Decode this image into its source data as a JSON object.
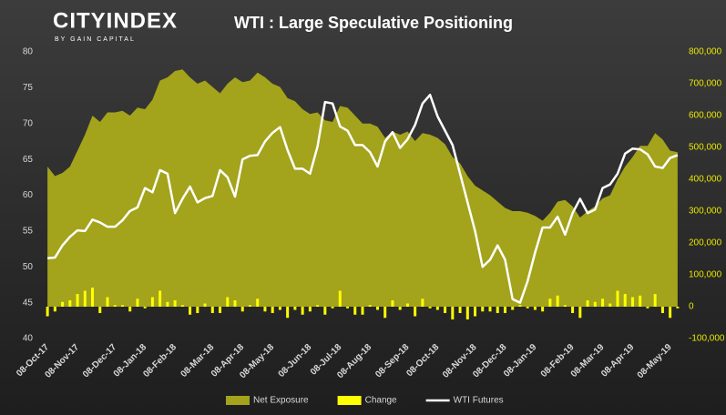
{
  "logo": {
    "brand": "CITYINDEX",
    "tagline": "BY GAIN CAPITAL"
  },
  "chart_data": {
    "type": "combo",
    "title": "WTI : Large Speculative Positioning",
    "categories": [
      "08-Oct-17",
      null,
      null,
      null,
      "08-Nov-17",
      null,
      null,
      null,
      null,
      "08-Dec-17",
      null,
      null,
      null,
      "08-Jan-18",
      null,
      null,
      null,
      "08-Feb-18",
      null,
      null,
      null,
      null,
      "08-Mar-18",
      null,
      null,
      null,
      "08-Apr-18",
      null,
      null,
      null,
      "08-May-18",
      null,
      null,
      null,
      null,
      "08-Jun-18",
      null,
      null,
      null,
      "08-Jul-18",
      null,
      null,
      null,
      "08-Aug-18",
      null,
      null,
      null,
      null,
      "08-Sep-18",
      null,
      null,
      null,
      "08-Oct-18",
      null,
      null,
      null,
      null,
      "08-Nov-18",
      null,
      null,
      null,
      "08-Dec-18",
      null,
      null,
      null,
      "08-Jan-19",
      null,
      null,
      null,
      null,
      "08-Feb-19",
      null,
      null,
      null,
      "08-Mar-19",
      null,
      null,
      null,
      "08-Apr-19",
      null,
      null,
      null,
      null,
      "08-May-19",
      null
    ],
    "series": [
      {
        "name": "Net Exposure",
        "kind": "area",
        "axis": "y2",
        "color": "#a3a31c",
        "values": [
          440000,
          410000,
          420000,
          440000,
          490000,
          540000,
          600000,
          580000,
          610000,
          610000,
          615000,
          600000,
          625000,
          620000,
          650000,
          710000,
          720000,
          740000,
          745000,
          720000,
          700000,
          710000,
          690000,
          670000,
          700000,
          720000,
          705000,
          710000,
          735000,
          720000,
          700000,
          690000,
          655000,
          645000,
          620000,
          605000,
          610000,
          585000,
          580000,
          630000,
          625000,
          600000,
          575000,
          575000,
          565000,
          530000,
          550000,
          540000,
          550000,
          520000,
          545000,
          540000,
          530000,
          510000,
          470000,
          450000,
          410000,
          380000,
          365000,
          350000,
          330000,
          310000,
          300000,
          300000,
          295000,
          285000,
          270000,
          295000,
          330000,
          335000,
          315000,
          280000,
          300000,
          315000,
          340000,
          350000,
          400000,
          440000,
          470000,
          505000,
          505000,
          545000,
          525000,
          490000,
          485000
        ]
      },
      {
        "name": "Change",
        "kind": "bar",
        "axis": "y2",
        "color": "#ffff00",
        "values": [
          -30000,
          -15000,
          15000,
          20000,
          40000,
          50000,
          60000,
          -20000,
          30000,
          5000,
          5000,
          -15000,
          25000,
          -5000,
          30000,
          50000,
          15000,
          20000,
          5000,
          -25000,
          -20000,
          10000,
          -20000,
          -20000,
          30000,
          20000,
          -15000,
          5000,
          25000,
          -15000,
          -20000,
          -10000,
          -35000,
          -10000,
          -25000,
          -15000,
          5000,
          -25000,
          -5000,
          50000,
          -5000,
          -25000,
          -25000,
          5000,
          -10000,
          -35000,
          20000,
          -10000,
          10000,
          -30000,
          25000,
          -5000,
          -10000,
          -20000,
          -40000,
          -20000,
          -40000,
          -30000,
          -15000,
          -15000,
          -20000,
          -20000,
          -10000,
          5000,
          -5000,
          -10000,
          -15000,
          25000,
          35000,
          5000,
          -20000,
          -35000,
          20000,
          15000,
          25000,
          10000,
          50000,
          40000,
          30000,
          35000,
          -5000,
          40000,
          -20000,
          -35000,
          -5000
        ]
      },
      {
        "name": "WTI Futures",
        "kind": "line",
        "axis": "y",
        "color": "#ffffff",
        "values": [
          51.2,
          51.3,
          53,
          54.2,
          55.1,
          55,
          56.6,
          56.2,
          55.6,
          55.6,
          56.5,
          57.8,
          58.3,
          61,
          60.4,
          63.5,
          63,
          57.5,
          59.5,
          61.2,
          59,
          59.6,
          59.9,
          63.5,
          62.5,
          59.8,
          65,
          65.5,
          65.6,
          67.5,
          68.7,
          69.5,
          66.3,
          63.7,
          63.7,
          63,
          66.8,
          73,
          72.8,
          69.6,
          69,
          67,
          67,
          66,
          64,
          67.5,
          68.8,
          66.6,
          67.8,
          69.8,
          72.8,
          74,
          71,
          69,
          67,
          63,
          59,
          55,
          50,
          51,
          53,
          51,
          45.5,
          45,
          48,
          52,
          55.5,
          55.5,
          57,
          54.5,
          57.5,
          59.5,
          57.5,
          58,
          61,
          61.5,
          63,
          65.8,
          66.5,
          66.4,
          65.7,
          64,
          63.8,
          65.2,
          65.6
        ]
      }
    ],
    "ylim": [
      40,
      80
    ],
    "yticks": [
      40,
      45,
      50,
      55,
      60,
      65,
      70,
      75,
      80
    ],
    "y2lim": [
      -100000,
      800000
    ],
    "y2ticks": [
      {
        "value": -100000,
        "label": "-100,000"
      },
      0,
      {
        "value": 100000,
        "label": "100,000"
      },
      {
        "value": 200000,
        "label": "200,000"
      },
      {
        "value": 300000,
        "label": "300,000"
      },
      {
        "value": 400000,
        "label": "400,000"
      },
      {
        "value": 500000,
        "label": "500,000"
      },
      {
        "value": 600000,
        "label": "600,000"
      },
      {
        "value": 700000,
        "label": "700,000"
      },
      {
        "value": 800000,
        "label": "800,000"
      }
    ],
    "legend": "bottom"
  }
}
